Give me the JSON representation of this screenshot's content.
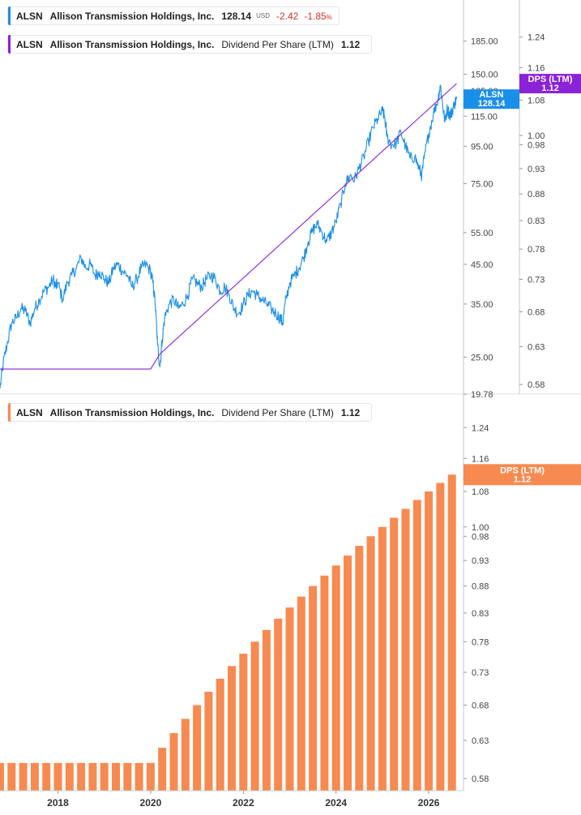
{
  "legend_price": {
    "ticker": "ALSN",
    "company": "Allison Transmission Holdings, Inc.",
    "price": "128.14",
    "currency": "USD",
    "change": "-2.42",
    "change_pct": "-1.85",
    "pct_sign": "%",
    "color": "#1a8fe8"
  },
  "legend_dps_top": {
    "ticker": "ALSN",
    "company": "Allison Transmission Holdings, Inc.",
    "metric": "Dividend Per Share (LTM)",
    "value": "1.12",
    "color": "#8a22d8"
  },
  "legend_dps_bottom": {
    "ticker": "ALSN",
    "company": "Allison Transmission Holdings, Inc.",
    "metric": "Dividend Per Share (LTM)",
    "value": "1.12",
    "color": "#f78a50"
  },
  "chart_data": [
    {
      "type": "line",
      "panel": "top",
      "x_range": [
        2016.75,
        2026.75
      ],
      "series": [
        {
          "name": "ALSN",
          "color": "#1a8fe8",
          "axis": "price",
          "last_label": "ALSN",
          "last_value": "128.14",
          "points": [
            [
              2016.75,
              20.5
            ],
            [
              2016.82,
              24
            ],
            [
              2016.9,
              27
            ],
            [
              2017.0,
              31
            ],
            [
              2017.1,
              32
            ],
            [
              2017.2,
              34
            ],
            [
              2017.3,
              33.5
            ],
            [
              2017.4,
              31
            ],
            [
              2017.5,
              34
            ],
            [
              2017.6,
              36
            ],
            [
              2017.7,
              38
            ],
            [
              2017.8,
              39
            ],
            [
              2017.9,
              41
            ],
            [
              2017.95,
              39
            ],
            [
              2018.0,
              40
            ],
            [
              2018.1,
              36
            ],
            [
              2018.2,
              40
            ],
            [
              2018.3,
              42
            ],
            [
              2018.4,
              44
            ],
            [
              2018.5,
              47
            ],
            [
              2018.6,
              44
            ],
            [
              2018.7,
              45
            ],
            [
              2018.8,
              42
            ],
            [
              2018.9,
              43
            ],
            [
              2019.0,
              41
            ],
            [
              2019.1,
              40
            ],
            [
              2019.2,
              44
            ],
            [
              2019.3,
              45
            ],
            [
              2019.4,
              43
            ],
            [
              2019.5,
              42
            ],
            [
              2019.6,
              39
            ],
            [
              2019.7,
              41
            ],
            [
              2019.8,
              44
            ],
            [
              2019.9,
              45
            ],
            [
              2020.0,
              43
            ],
            [
              2020.05,
              40
            ],
            [
              2020.1,
              35
            ],
            [
              2020.15,
              27
            ],
            [
              2020.2,
              23.5
            ],
            [
              2020.25,
              28
            ],
            [
              2020.3,
              32
            ],
            [
              2020.4,
              35
            ],
            [
              2020.5,
              36
            ],
            [
              2020.6,
              34
            ],
            [
              2020.7,
              35
            ],
            [
              2020.8,
              37
            ],
            [
              2020.9,
              41
            ],
            [
              2021.0,
              40
            ],
            [
              2021.1,
              39
            ],
            [
              2021.2,
              41
            ],
            [
              2021.3,
              42
            ],
            [
              2021.4,
              41
            ],
            [
              2021.5,
              38
            ],
            [
              2021.6,
              39
            ],
            [
              2021.7,
              37
            ],
            [
              2021.8,
              34
            ],
            [
              2021.9,
              33
            ],
            [
              2022.0,
              35
            ],
            [
              2022.1,
              37
            ],
            [
              2022.2,
              38
            ],
            [
              2022.3,
              37
            ],
            [
              2022.4,
              36
            ],
            [
              2022.5,
              35
            ],
            [
              2022.6,
              34
            ],
            [
              2022.7,
              33
            ],
            [
              2022.8,
              32
            ],
            [
              2022.85,
              31
            ],
            [
              2022.9,
              35
            ],
            [
              2023.0,
              40
            ],
            [
              2023.1,
              42
            ],
            [
              2023.2,
              44
            ],
            [
              2023.3,
              47
            ],
            [
              2023.4,
              52
            ],
            [
              2023.5,
              56
            ],
            [
              2023.6,
              58
            ],
            [
              2023.7,
              55
            ],
            [
              2023.8,
              52
            ],
            [
              2023.9,
              55
            ],
            [
              2024.0,
              59
            ],
            [
              2024.1,
              66
            ],
            [
              2024.2,
              75
            ],
            [
              2024.3,
              79
            ],
            [
              2024.4,
              77
            ],
            [
              2024.5,
              83
            ],
            [
              2024.6,
              89
            ],
            [
              2024.7,
              98
            ],
            [
              2024.8,
              107
            ],
            [
              2024.9,
              113
            ],
            [
              2025.0,
              119
            ],
            [
              2025.05,
              114
            ],
            [
              2025.1,
              101
            ],
            [
              2025.2,
              96
            ],
            [
              2025.3,
              97
            ],
            [
              2025.4,
              104
            ],
            [
              2025.5,
              95
            ],
            [
              2025.6,
              88
            ],
            [
              2025.7,
              89
            ],
            [
              2025.8,
              82
            ],
            [
              2025.85,
              79
            ],
            [
              2025.9,
              88
            ],
            [
              2026.0,
              103
            ],
            [
              2026.1,
              117
            ],
            [
              2026.2,
              128
            ],
            [
              2026.25,
              140
            ],
            [
              2026.3,
              124
            ],
            [
              2026.35,
              111
            ],
            [
              2026.4,
              121
            ],
            [
              2026.45,
              116
            ],
            [
              2026.5,
              118
            ],
            [
              2026.55,
              124
            ],
            [
              2026.6,
              128.14
            ]
          ]
        },
        {
          "name": "DPS (LTM)",
          "color": "#8a22d8",
          "axis": "dps",
          "last_label": "DPS (LTM)",
          "last_value": "1.12",
          "points": [
            [
              2016.75,
              0.6
            ],
            [
              2020.0,
              0.6
            ],
            [
              2020.2,
              0.62
            ],
            [
              2026.6,
              1.12
            ]
          ]
        }
      ],
      "price_axis": {
        "scale": "log",
        "min": 19.78,
        "max": 240,
        "ticks": [
          "185.00",
          "150.00",
          "115.00",
          "95.00",
          "75.00",
          "55.00",
          "45.00",
          "35.00",
          "25.00",
          "19.78"
        ],
        "hidden_tick": "135.00"
      },
      "dps_axis": {
        "scale": "log",
        "min": 0.57,
        "max": 1.34,
        "ticks": [
          "1.24",
          "1.16",
          "1.08",
          "1.00",
          "0.98",
          "0.93",
          "0.88",
          "0.83",
          "0.78",
          "0.73",
          "0.68",
          "0.63",
          "0.58"
        ]
      }
    },
    {
      "type": "bar",
      "panel": "bottom",
      "series": [
        {
          "name": "DPS (LTM)",
          "color": "#f78a50",
          "last_label": "DPS (LTM)",
          "last_value": "1.12",
          "x": [
            2016.75,
            2017.0,
            2017.25,
            2017.5,
            2017.75,
            2018.0,
            2018.25,
            2018.5,
            2018.75,
            2019.0,
            2019.25,
            2019.5,
            2019.75,
            2020.0,
            2020.25,
            2020.5,
            2020.75,
            2021.0,
            2021.25,
            2021.5,
            2021.75,
            2022.0,
            2022.25,
            2022.5,
            2022.75,
            2023.0,
            2023.25,
            2023.5,
            2023.75,
            2024.0,
            2024.25,
            2024.5,
            2024.75,
            2025.0,
            2025.25,
            2025.5,
            2025.75,
            2026.0,
            2026.25,
            2026.5
          ],
          "values": [
            0.6,
            0.6,
            0.6,
            0.6,
            0.6,
            0.6,
            0.6,
            0.6,
            0.6,
            0.6,
            0.6,
            0.6,
            0.6,
            0.6,
            0.62,
            0.64,
            0.66,
            0.68,
            0.7,
            0.72,
            0.74,
            0.76,
            0.78,
            0.8,
            0.82,
            0.84,
            0.86,
            0.88,
            0.9,
            0.92,
            0.94,
            0.96,
            0.98,
            1.0,
            1.02,
            1.04,
            1.06,
            1.08,
            1.1,
            1.12
          ]
        }
      ],
      "dps_axis": {
        "scale": "log",
        "min": 0.57,
        "max": 1.31,
        "ticks": [
          "1.24",
          "1.16",
          "1.08",
          "1.00",
          "0.98",
          "0.93",
          "0.88",
          "0.83",
          "0.78",
          "0.73",
          "0.68",
          "0.63",
          "0.58"
        ]
      },
      "x_ticks": [
        "2018",
        "2020",
        "2022",
        "2024",
        "2026"
      ],
      "x_tick_values": [
        2018,
        2020,
        2022,
        2024,
        2026
      ]
    }
  ]
}
